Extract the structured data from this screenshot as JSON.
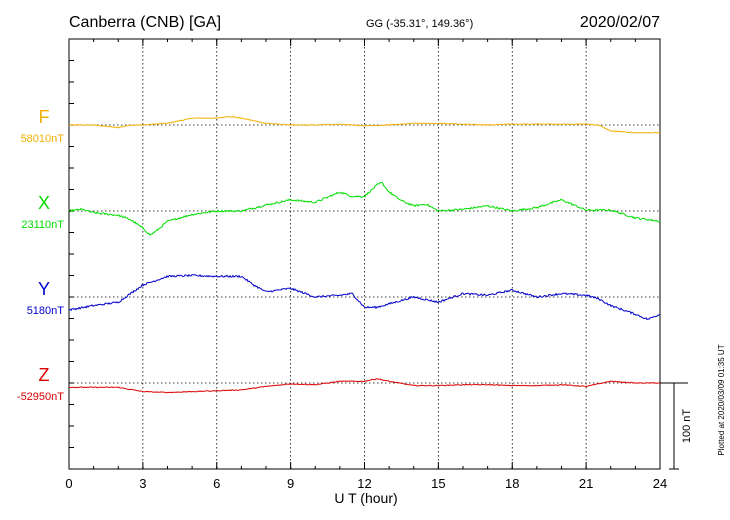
{
  "header": {
    "station": "Canberra (CNB)  [GA]",
    "coords": "GG (-35.31°, 149.36°)",
    "date": "2020/02/07"
  },
  "side_note": "Plotted at 2020/03/09 01:35 UT",
  "scale_label": "100 nT",
  "chart_data": {
    "type": "line",
    "xlabel": "U T (hour)",
    "xlim": [
      0,
      24
    ],
    "xticks": [
      "0",
      "3",
      "6",
      "9",
      "12",
      "15",
      "18",
      "21",
      "24"
    ],
    "grid": true,
    "series": [
      {
        "name": "F",
        "baseline_label": "58010nT",
        "color": "#f0b000",
        "x": [
          0,
          1,
          2,
          2.5,
          3,
          4,
          5,
          6,
          6.5,
          7,
          8,
          9,
          10,
          11,
          12,
          13,
          14,
          15,
          16,
          17,
          18,
          19,
          20,
          21,
          21.5,
          22,
          23,
          24
        ],
        "y": [
          0,
          0,
          -3,
          0,
          0,
          2,
          8,
          8,
          10,
          8,
          2,
          0,
          0,
          1,
          -1,
          0,
          2,
          2,
          1,
          0,
          1,
          1,
          1,
          1,
          0,
          -7,
          -9,
          -9
        ]
      },
      {
        "name": "X",
        "baseline_label": "23110nT",
        "color": "#00dd00",
        "x": [
          0,
          0.5,
          1,
          2,
          2.5,
          3,
          3.3,
          3.6,
          4,
          5,
          6,
          7,
          8,
          9,
          10,
          11,
          11.5,
          12,
          12.5,
          12.7,
          13,
          13.5,
          14,
          14.5,
          15,
          16,
          17,
          18,
          19,
          20,
          21,
          22,
          23,
          24
        ],
        "y": [
          0,
          2,
          -2,
          -5,
          -10,
          -20,
          -28,
          -22,
          -12,
          -4,
          0,
          0,
          7,
          13,
          10,
          22,
          17,
          17,
          30,
          33,
          22,
          12,
          6,
          8,
          0,
          2,
          6,
          0,
          4,
          13,
          1,
          1,
          -8,
          -12
        ]
      },
      {
        "name": "Y",
        "baseline_label": "5180nT",
        "color": "#0000cc",
        "x": [
          0,
          1,
          2,
          2.5,
          3,
          4,
          5,
          6,
          7,
          7.5,
          8,
          9,
          10,
          11,
          11.5,
          12,
          12.5,
          13,
          14,
          15,
          16,
          17,
          18,
          19,
          20,
          21,
          21.5,
          22,
          23,
          23.5,
          24
        ],
        "y": [
          -15,
          -10,
          -6,
          4,
          14,
          24,
          25,
          24,
          24,
          14,
          6,
          10,
          0,
          2,
          4,
          -12,
          -12,
          -8,
          0,
          -6,
          4,
          2,
          8,
          0,
          4,
          2,
          -2,
          -10,
          -20,
          -26,
          -20
        ]
      },
      {
        "name": "Z",
        "baseline_label": "-52950nT",
        "color": "#dd0000",
        "x": [
          0,
          1,
          2,
          3,
          4,
          5,
          6,
          7,
          8,
          9,
          10,
          11,
          12,
          12.5,
          13,
          14,
          15,
          16,
          17,
          18,
          19,
          20,
          21,
          22,
          23,
          24
        ],
        "y": [
          -5,
          -5,
          -5,
          -10,
          -11,
          -10,
          -9,
          -8,
          -4,
          -1,
          -2,
          2,
          2,
          5,
          2,
          -3,
          -3,
          -2,
          -2,
          -3,
          -3,
          -2,
          -4,
          2,
          0,
          0
        ]
      }
    ]
  }
}
